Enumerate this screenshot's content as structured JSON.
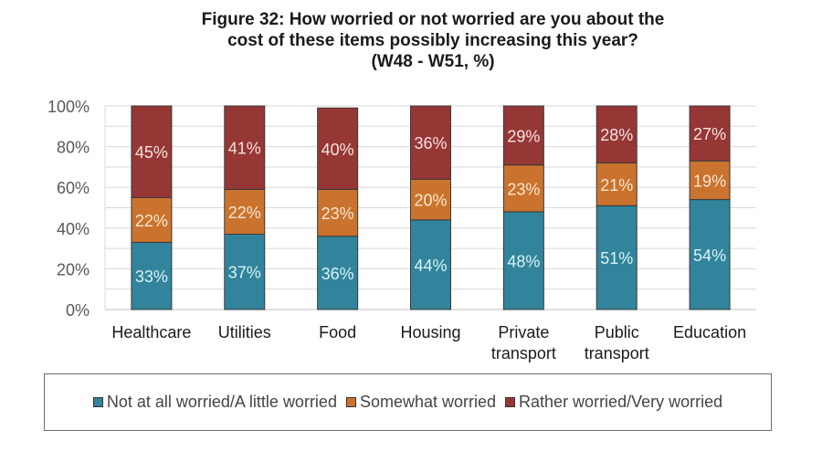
{
  "title_lines": [
    "Figure 32:  How worried or not worried are you about the",
    "cost of these items possibly increasing this year?",
    "(W48 - W51, %)"
  ],
  "chart_data": {
    "type": "bar",
    "stacked": true,
    "title": "Figure 32: How worried or not worried are you about the cost of these items possibly increasing this year? (W48 - W51, %)",
    "xlabel": "",
    "ylabel": "",
    "ylim": [
      0,
      100
    ],
    "yticks": [
      0,
      20,
      40,
      60,
      80,
      100
    ],
    "ytick_labels": [
      "0%",
      "20%",
      "40%",
      "60%",
      "80%",
      "100%"
    ],
    "grid": true,
    "legend_position": "bottom",
    "categories": [
      [
        "Healthcare"
      ],
      [
        "Utilities"
      ],
      [
        "Food"
      ],
      [
        "Housing"
      ],
      [
        "Private",
        "transport"
      ],
      [
        "Public",
        "transport"
      ],
      [
        "Education"
      ]
    ],
    "series": [
      {
        "name": "Not at all worried/A little worried",
        "color": "#31849b",
        "values": [
          33,
          37,
          36,
          44,
          48,
          51,
          54
        ]
      },
      {
        "name": "Somewhat worried",
        "color": "#c9732e",
        "values": [
          22,
          22,
          23,
          20,
          23,
          21,
          19
        ]
      },
      {
        "name": "Rather worried/Very worried",
        "color": "#953735",
        "values": [
          45,
          41,
          40,
          36,
          29,
          28,
          27
        ]
      }
    ],
    "data_label_suffix": "%"
  }
}
